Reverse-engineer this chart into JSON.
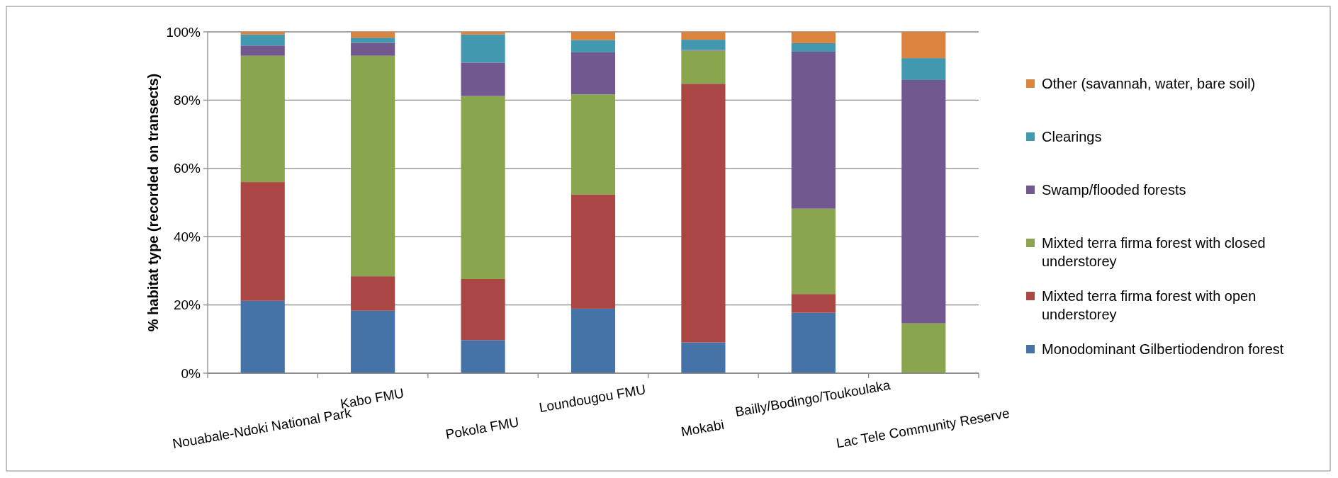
{
  "chart_data": {
    "type": "bar",
    "stacked": true,
    "ylabel": "% habitat type (recorded on transects)",
    "categories": [
      "Nouabale-Ndoki National Park",
      "Kabo FMU",
      "Pokola FMU",
      "Loundougou FMU",
      "Mokabi",
      "Bailly/Bodingo/Toukoulaka",
      "Lac Tele Community Reserve"
    ],
    "series": [
      {
        "name": "Monodominant Gilbertiodendron forest",
        "color": "#4572a7",
        "values": [
          21.2,
          18.3,
          9.7,
          18.9,
          9,
          17.7,
          0
        ]
      },
      {
        "name": "Mixted terra firma forest with open understorey",
        "color": "#aa4643",
        "values": [
          34.8,
          10.1,
          17.9,
          33.4,
          75.8,
          5.5,
          0
        ]
      },
      {
        "name": "Mixted terra firma forest with closed understorey",
        "color": "#89a54e",
        "values": [
          37,
          64.6,
          53.6,
          29.4,
          9.7,
          25,
          14.6
        ]
      },
      {
        "name": "Swamp/flooded forests",
        "color": "#71588f",
        "values": [
          3,
          3.8,
          9.8,
          12.3,
          0.2,
          46,
          71.3
        ]
      },
      {
        "name": "Clearings",
        "color": "#4198af",
        "values": [
          3.2,
          1.5,
          8.2,
          3.6,
          3,
          2.5,
          6.4
        ]
      },
      {
        "name": "Other (savannah, water, bare soil)",
        "color": "#db843d",
        "values": [
          0.8,
          1.7,
          0.8,
          2.4,
          2.3,
          3.3,
          7.7
        ]
      }
    ],
    "ylim": [
      0,
      100
    ],
    "yticks": [
      {
        "value": 0,
        "label": "0%"
      },
      {
        "value": 20,
        "label": "20%"
      },
      {
        "value": 40,
        "label": "40%"
      },
      {
        "value": 60,
        "label": "60%"
      },
      {
        "value": 80,
        "label": "80%"
      },
      {
        "value": 100,
        "label": "100%"
      }
    ],
    "grid": "y",
    "legend": "right"
  }
}
